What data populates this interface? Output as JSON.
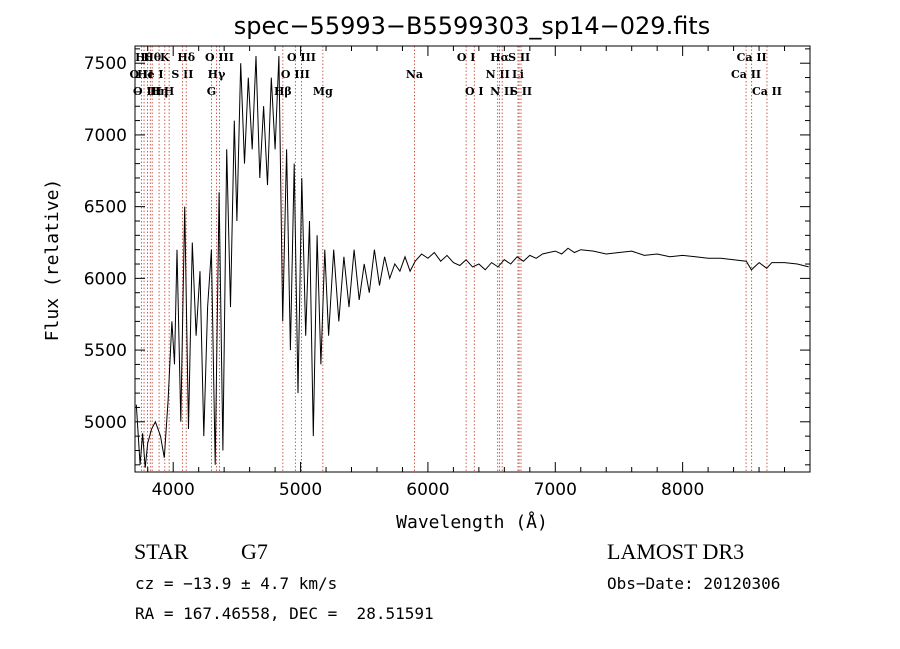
{
  "chart_data": {
    "type": "line",
    "title": "spec−55993−B5599303_sp14−029.fits",
    "xlabel": "Wavelength (Å)",
    "ylabel": "Flux (relative)",
    "xlim": [
      3700,
      9000
    ],
    "ylim": [
      4650,
      7620
    ],
    "xticks": [
      4000,
      5000,
      6000,
      7000,
      8000
    ],
    "yticks": [
      5000,
      5500,
      6000,
      6500,
      7000,
      7500
    ],
    "series": [
      {
        "name": "flux",
        "x": [
          3710,
          3740,
          3760,
          3780,
          3800,
          3830,
          3860,
          3900,
          3930,
          3960,
          3990,
          4010,
          4030,
          4060,
          4090,
          4120,
          4150,
          4180,
          4210,
          4240,
          4270,
          4300,
          4330,
          4360,
          4390,
          4420,
          4450,
          4480,
          4500,
          4530,
          4560,
          4590,
          4620,
          4650,
          4680,
          4710,
          4740,
          4770,
          4800,
          4830,
          4860,
          4890,
          4920,
          4950,
          4980,
          5010,
          5040,
          5070,
          5100,
          5130,
          5160,
          5190,
          5220,
          5260,
          5300,
          5340,
          5380,
          5420,
          5460,
          5500,
          5540,
          5580,
          5620,
          5660,
          5700,
          5740,
          5780,
          5820,
          5860,
          5900,
          5950,
          6000,
          6050,
          6100,
          6150,
          6200,
          6250,
          6300,
          6350,
          6400,
          6450,
          6500,
          6550,
          6600,
          6650,
          6700,
          6750,
          6800,
          6850,
          6900,
          6950,
          7000,
          7050,
          7100,
          7150,
          7200,
          7300,
          7400,
          7500,
          7600,
          7700,
          7800,
          7900,
          8000,
          8100,
          8200,
          8300,
          8400,
          8500,
          8540,
          8600,
          8660,
          8700,
          8800,
          8900,
          8990
        ],
        "values": [
          5120,
          4700,
          4920,
          4680,
          4850,
          4950,
          5000,
          4900,
          4750,
          5150,
          5700,
          5400,
          6200,
          5000,
          6500,
          4950,
          6250,
          5600,
          6050,
          4900,
          5800,
          6200,
          4700,
          6600,
          4800,
          6900,
          5800,
          7100,
          6400,
          7500,
          6800,
          7400,
          6900,
          7550,
          6700,
          7200,
          6650,
          7400,
          6900,
          7550,
          5700,
          6900,
          5500,
          6800,
          5200,
          6700,
          5600,
          6400,
          4900,
          6300,
          5400,
          6200,
          5600,
          6200,
          5700,
          6150,
          5800,
          6200,
          5850,
          6100,
          5900,
          6200,
          5950,
          6150,
          6000,
          6100,
          6050,
          6150,
          6050,
          6120,
          6170,
          6140,
          6180,
          6120,
          6160,
          6110,
          6090,
          6130,
          6080,
          6100,
          6060,
          6110,
          6080,
          6130,
          6100,
          6150,
          6120,
          6160,
          6140,
          6170,
          6180,
          6190,
          6170,
          6210,
          6180,
          6200,
          6190,
          6170,
          6180,
          6190,
          6160,
          6170,
          6150,
          6160,
          6150,
          6140,
          6140,
          6130,
          6120,
          6060,
          6110,
          6070,
          6110,
          6110,
          6100,
          6080
        ]
      }
    ],
    "line_markers": [
      {
        "wl": 3750,
        "row": 1,
        "label": "O II"
      },
      {
        "wl": 3771,
        "row": 0,
        "label": "Hθ"
      },
      {
        "wl": 3798,
        "row": 2,
        "label": "O III"
      },
      {
        "wl": 3820,
        "row": 1,
        "label": "He I"
      },
      {
        "wl": 3835,
        "row": 0,
        "label": "Hθ"
      },
      {
        "wl": 3889,
        "row": 2,
        "label": "Hη"
      },
      {
        "wl": 3934,
        "row": 0,
        "label": "K"
      },
      {
        "wl": 3968,
        "row": 2,
        "label": "H"
      },
      {
        "wl": 4072,
        "row": 1,
        "label": "S II"
      },
      {
        "wl": 4102,
        "row": 0,
        "label": "Hδ"
      },
      {
        "wl": 4300,
        "row": 2,
        "label": "G"
      },
      {
        "wl": 4340,
        "row": 1,
        "label": "Hγ"
      },
      {
        "wl": 4363,
        "row": 0,
        "label": "O III"
      },
      {
        "wl": 4861,
        "row": 2,
        "label": "Hβ"
      },
      {
        "wl": 4959,
        "row": 1,
        "label": "O III"
      },
      {
        "wl": 5007,
        "row": 0,
        "label": "O III"
      },
      {
        "wl": 5175,
        "row": 2,
        "label": "Mg"
      },
      {
        "wl": 5894,
        "row": 1,
        "label": "Na"
      },
      {
        "wl": 6300,
        "row": 0,
        "label": "O I"
      },
      {
        "wl": 6364,
        "row": 2,
        "label": "O I"
      },
      {
        "wl": 6548,
        "row": 1,
        "label": "N II"
      },
      {
        "wl": 6563,
        "row": 0,
        "label": "Hα"
      },
      {
        "wl": 6583,
        "row": 2,
        "label": "N II"
      },
      {
        "wl": 6707,
        "row": 1,
        "label": "Li"
      },
      {
        "wl": 6716,
        "row": 0,
        "label": "S II"
      },
      {
        "wl": 6731,
        "row": 2,
        "label": "S II"
      },
      {
        "wl": 8498,
        "row": 1,
        "label": "Ca II"
      },
      {
        "wl": 8542,
        "row": 0,
        "label": "Ca II"
      },
      {
        "wl": 8662,
        "row": 2,
        "label": "Ca II"
      }
    ]
  },
  "info": {
    "object_class": "STAR",
    "subclass": "G7",
    "survey": "LAMOST DR3",
    "cz": "cz = −13.9 ± 4.7 km/s",
    "obs_date": "Obs−Date: 20120306",
    "coords": "RA = 167.46558, DEC =  28.51591"
  }
}
